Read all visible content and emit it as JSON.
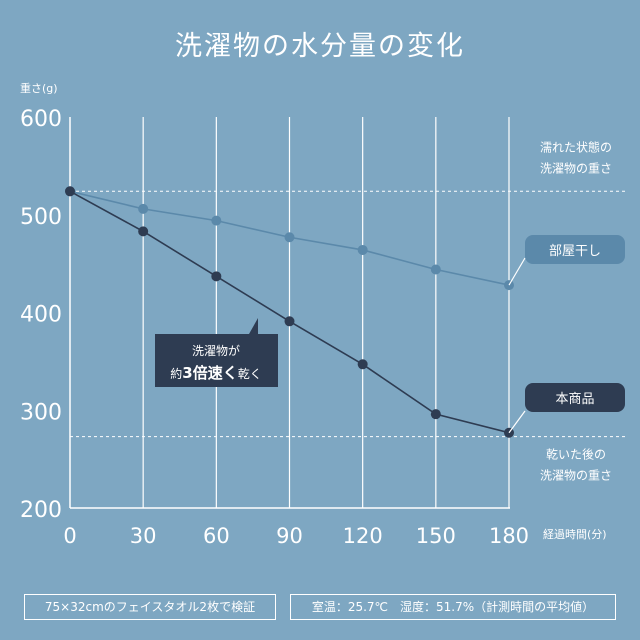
{
  "title": "洗濯物の水分量の変化",
  "chart_data": {
    "type": "line",
    "ylabel": "重さ(g)",
    "xlabel": "経過時間(分)",
    "x": [
      0,
      30,
      60,
      90,
      120,
      150,
      180
    ],
    "xlim": [
      0,
      180
    ],
    "ylim": [
      200,
      600
    ],
    "yticks": [
      600,
      500,
      400,
      300,
      200
    ],
    "grid": "vertical",
    "series": [
      {
        "name": "部屋干し",
        "color": "#5b89aa",
        "values": [
          524,
          506,
          494,
          477,
          464,
          444,
          428
        ]
      },
      {
        "name": "本商品",
        "color": "#2e3c52",
        "values": [
          524,
          483,
          437,
          391,
          347,
          296,
          277
        ]
      }
    ],
    "reference_lines": [
      {
        "label_line1": "濡れた状態の",
        "label_line2": "洗濯物の重さ",
        "value": 524
      },
      {
        "label_line1": "乾いた後の",
        "label_line2": "洗濯物の重さ",
        "value": 273
      }
    ],
    "callout": {
      "line1": "洗濯物が",
      "line2_pre": "約",
      "line2_em": "3倍速く",
      "line2_post": "乾く"
    }
  },
  "notes": {
    "left": "75×32cmのフェイスタオル2枚で検証",
    "right": "室温：25.7℃　湿度：51.7%（計測時間の平均値）"
  }
}
